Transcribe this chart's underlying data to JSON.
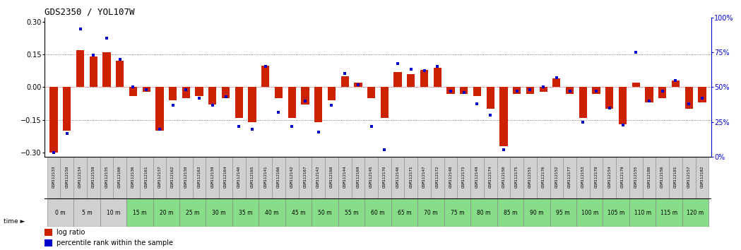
{
  "title": "GDS2350 / YOL107W",
  "gsm_labels": [
    "GSM112133",
    "GSM112158",
    "GSM112134",
    "GSM112159",
    "GSM112135",
    "GSM112160",
    "GSM112136",
    "GSM112161",
    "GSM112137",
    "GSM112162",
    "GSM112138",
    "GSM112163",
    "GSM112139",
    "GSM112164",
    "GSM112140",
    "GSM112165",
    "GSM112141",
    "GSM112166",
    "GSM112142",
    "GSM112167",
    "GSM112143",
    "GSM112168",
    "GSM112144",
    "GSM112169",
    "GSM112145",
    "GSM112170",
    "GSM112146",
    "GSM112171",
    "GSM112147",
    "GSM112172",
    "GSM112148",
    "GSM112173",
    "GSM112149",
    "GSM112174",
    "GSM112150",
    "GSM112175",
    "GSM112151",
    "GSM112176",
    "GSM112152",
    "GSM112177",
    "GSM112153",
    "GSM112178",
    "GSM112154",
    "GSM112179",
    "GSM112155",
    "GSM112180",
    "GSM112156",
    "GSM112181",
    "GSM112157",
    "GSM112182"
  ],
  "time_labels": [
    "0 m",
    "5 m",
    "10 m",
    "15 m",
    "20 m",
    "25 m",
    "30 m",
    "35 m",
    "40 m",
    "45 m",
    "50 m",
    "55 m",
    "60 m",
    "65 m",
    "70 m",
    "75 m",
    "80 m",
    "85 m",
    "90 m",
    "95 m",
    "100 m",
    "105 m",
    "110 m",
    "115 m",
    "120 m"
  ],
  "log_ratio": [
    -0.3,
    -0.2,
    0.17,
    0.14,
    0.16,
    0.12,
    -0.04,
    -0.02,
    -0.2,
    -0.06,
    -0.05,
    -0.04,
    -0.08,
    -0.05,
    -0.14,
    -0.16,
    0.1,
    -0.05,
    -0.14,
    -0.08,
    -0.16,
    -0.06,
    0.05,
    0.02,
    -0.05,
    -0.14,
    0.07,
    0.06,
    0.08,
    0.09,
    -0.03,
    -0.03,
    -0.04,
    -0.1,
    -0.27,
    -0.03,
    -0.03,
    -0.02,
    0.04,
    -0.03,
    -0.14,
    -0.03,
    -0.1,
    -0.17,
    0.02,
    -0.07,
    -0.05,
    0.03,
    -0.1,
    -0.07
  ],
  "percentile": [
    3,
    17,
    92,
    73,
    85,
    70,
    50,
    48,
    20,
    37,
    48,
    42,
    37,
    43,
    22,
    20,
    65,
    32,
    22,
    40,
    18,
    37,
    60,
    52,
    22,
    5,
    67,
    63,
    62,
    65,
    47,
    46,
    38,
    30,
    5,
    47,
    48,
    50,
    57,
    47,
    25,
    47,
    35,
    23,
    75,
    40,
    47,
    55,
    38,
    42
  ],
  "bar_color": "#cc2200",
  "dot_color": "#0000cc",
  "ylim_left": [
    -0.32,
    0.32
  ],
  "ylim_right": [
    0,
    100
  ],
  "yticks_left": [
    -0.3,
    -0.15,
    0.0,
    0.15,
    0.3
  ],
  "yticks_right": [
    0,
    25,
    50,
    75,
    100
  ],
  "ytick_labels_right": [
    "0%",
    "25%",
    "50%",
    "75%",
    "100%"
  ],
  "hline_dotted": [
    -0.15,
    0.15
  ],
  "hline_solid": [
    0.0
  ],
  "gray_bg": "#d0d0d0",
  "green_bg": "#88dd88",
  "cell_edge": "#888888",
  "legend_log_ratio": "log ratio",
  "legend_percentile": "percentile rank within the sample",
  "n_gray_groups": 3
}
